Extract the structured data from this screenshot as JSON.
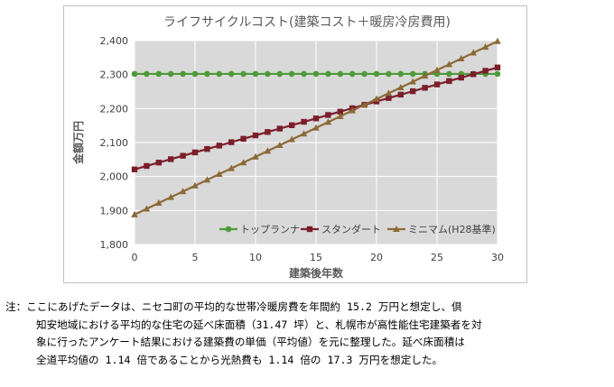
{
  "chart_data": {
    "type": "line",
    "title": "ライフサイクルコスト(建築コスト＋暖房冷房費用)",
    "xlabel": "建築後年数",
    "ylabel": "金額万円",
    "xlim": [
      0,
      30
    ],
    "ylim": [
      1800,
      2400
    ],
    "x_ticks": [
      "0",
      "5",
      "10",
      "15",
      "20",
      "25",
      "30"
    ],
    "y_ticks": [
      "1,800",
      "1,900",
      "2,000",
      "2,100",
      "2,200",
      "2,300",
      "2,400"
    ],
    "grid": true,
    "legend_position": "inside-lower-right",
    "x": [
      0,
      1,
      2,
      3,
      4,
      5,
      6,
      7,
      8,
      9,
      10,
      11,
      12,
      13,
      14,
      15,
      16,
      17,
      18,
      19,
      20,
      21,
      22,
      23,
      24,
      25,
      26,
      27,
      28,
      29,
      30
    ],
    "series": [
      {
        "name": "トップランナ",
        "color": "#4e9a3a",
        "marker": "circle",
        "values": [
          2302,
          2302,
          2302,
          2302,
          2302,
          2302,
          2302,
          2302,
          2302,
          2302,
          2302,
          2302,
          2302,
          2302,
          2302,
          2302,
          2302,
          2302,
          2302,
          2302,
          2302,
          2302,
          2302,
          2302,
          2302,
          2302,
          2302,
          2302,
          2302,
          2302,
          2302
        ]
      },
      {
        "name": "スタンダート",
        "color": "#7b1e2a",
        "marker": "square",
        "values": [
          2021,
          2031,
          2041,
          2051,
          2061,
          2071,
          2081,
          2091,
          2101,
          2111,
          2121,
          2131,
          2141,
          2151,
          2161,
          2171,
          2181,
          2191,
          2201,
          2211,
          2221,
          2231,
          2241,
          2251,
          2261,
          2271,
          2281,
          2291,
          2301,
          2311,
          2321
        ]
      },
      {
        "name": "ミニマム(H28基準)",
        "color": "#8c6a38",
        "marker": "triangle",
        "values": [
          1888,
          1905,
          1922,
          1939,
          1956,
          1973,
          1990,
          2007,
          2024,
          2041,
          2058,
          2075,
          2092,
          2109,
          2126,
          2143,
          2160,
          2177,
          2194,
          2211,
          2228,
          2245,
          2262,
          2279,
          2296,
          2313,
          2330,
          2347,
          2364,
          2381,
          2398
        ]
      }
    ]
  },
  "note": {
    "lines": [
      "注：ここにあげたデータは、ニセコ町の平均的な世帯冷暖房費を年間約 15.2 万円と想定し、倶",
      "知安地域における平均的な住宅の延べ床面積（31.47 坪）と、札幌市が高性能住宅建築者を対",
      "象に行ったアンケート結果における建築費の単価（平均値）を元に整理した。延べ床面積は",
      "全道平均値の 1.14 倍であることから光熱費も 1.14 倍の 17.3 万円を想定した。"
    ]
  }
}
